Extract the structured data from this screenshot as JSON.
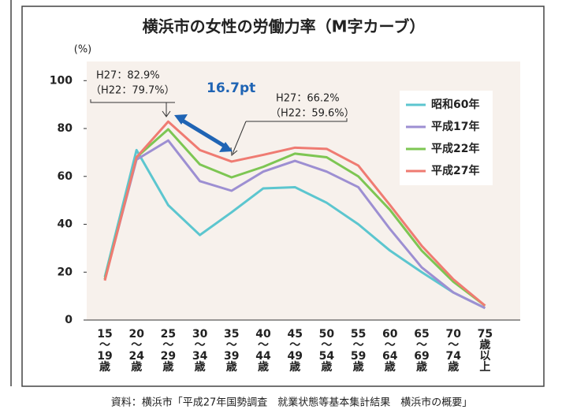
{
  "chart_data": {
    "type": "line",
    "title": "横浜市の女性の労働力率（M字カーブ）",
    "y_unit": "(%)",
    "categories": [
      "15〜19歳",
      "20〜24歳",
      "25〜29歳",
      "30〜34歳",
      "35〜39歳",
      "40〜44歳",
      "45〜49歳",
      "50〜54歳",
      "55〜59歳",
      "60〜64歳",
      "65〜69歳",
      "70〜74歳",
      "75歳以上"
    ],
    "series": [
      {
        "name": "昭和60年",
        "color": "#5cc6cf",
        "values": [
          18,
          71,
          48,
          35.5,
          45,
          55,
          55.5,
          49,
          40,
          29,
          20,
          11.5,
          5
        ]
      },
      {
        "name": "平成17年",
        "color": "#9d8fd2",
        "values": [
          17,
          67,
          75,
          58,
          54,
          62,
          66.5,
          62,
          55.5,
          38,
          22,
          11.5,
          5
        ]
      },
      {
        "name": "平成22年",
        "color": "#7dc653",
        "values": [
          17,
          68,
          79.7,
          65,
          59.6,
          64,
          69.5,
          68,
          60,
          46,
          29,
          16,
          6
        ]
      },
      {
        "name": "平成27年",
        "color": "#ef7b72",
        "values": [
          16.5,
          68,
          82.9,
          71,
          66.2,
          69,
          72,
          71.5,
          64.5,
          48,
          31,
          17,
          6
        ]
      }
    ],
    "ylim": [
      0,
      108
    ],
    "yticks": [
      0,
      20,
      40,
      60,
      80,
      100
    ],
    "grid": false,
    "legend": "upper right",
    "annotations": [
      "H27：82.9%",
      "（H22：79.7%）",
      "16.7pt",
      "H27：66.2%",
      "（H22：59.6%）"
    ],
    "source": "資料：横浜市「平成27年国勢調査　就業状態等基本集計結果　横浜市の概要」"
  }
}
